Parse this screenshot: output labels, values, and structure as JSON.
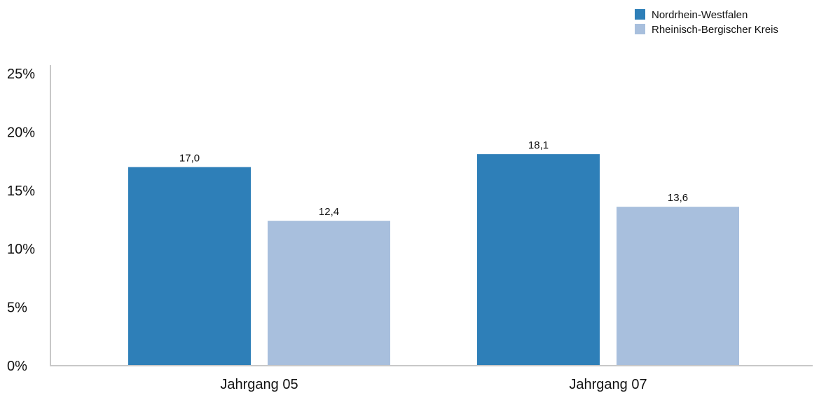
{
  "chart_data": {
    "type": "bar",
    "categories": [
      "Jahrgang 05",
      "Jahrgang 07"
    ],
    "series": [
      {
        "name": "Nordrhein-Westfalen",
        "color": "#2e7fb8",
        "values": [
          17.0,
          18.1
        ],
        "labels": [
          "17,0",
          "18,1"
        ]
      },
      {
        "name": "Rheinisch-Bergischer Kreis",
        "color": "#a8bfdd",
        "values": [
          12.4,
          13.6
        ],
        "labels": [
          "12,4",
          "13,6"
        ]
      }
    ],
    "yticks": [
      0,
      5,
      10,
      15,
      20,
      25
    ],
    "ytick_labels": [
      "0%",
      "5%",
      "10%",
      "15%",
      "20%",
      "25%"
    ],
    "ylim": [
      0,
      25
    ],
    "grid": false,
    "legend_position": "top-right",
    "title": "",
    "xlabel": "",
    "ylabel": ""
  }
}
